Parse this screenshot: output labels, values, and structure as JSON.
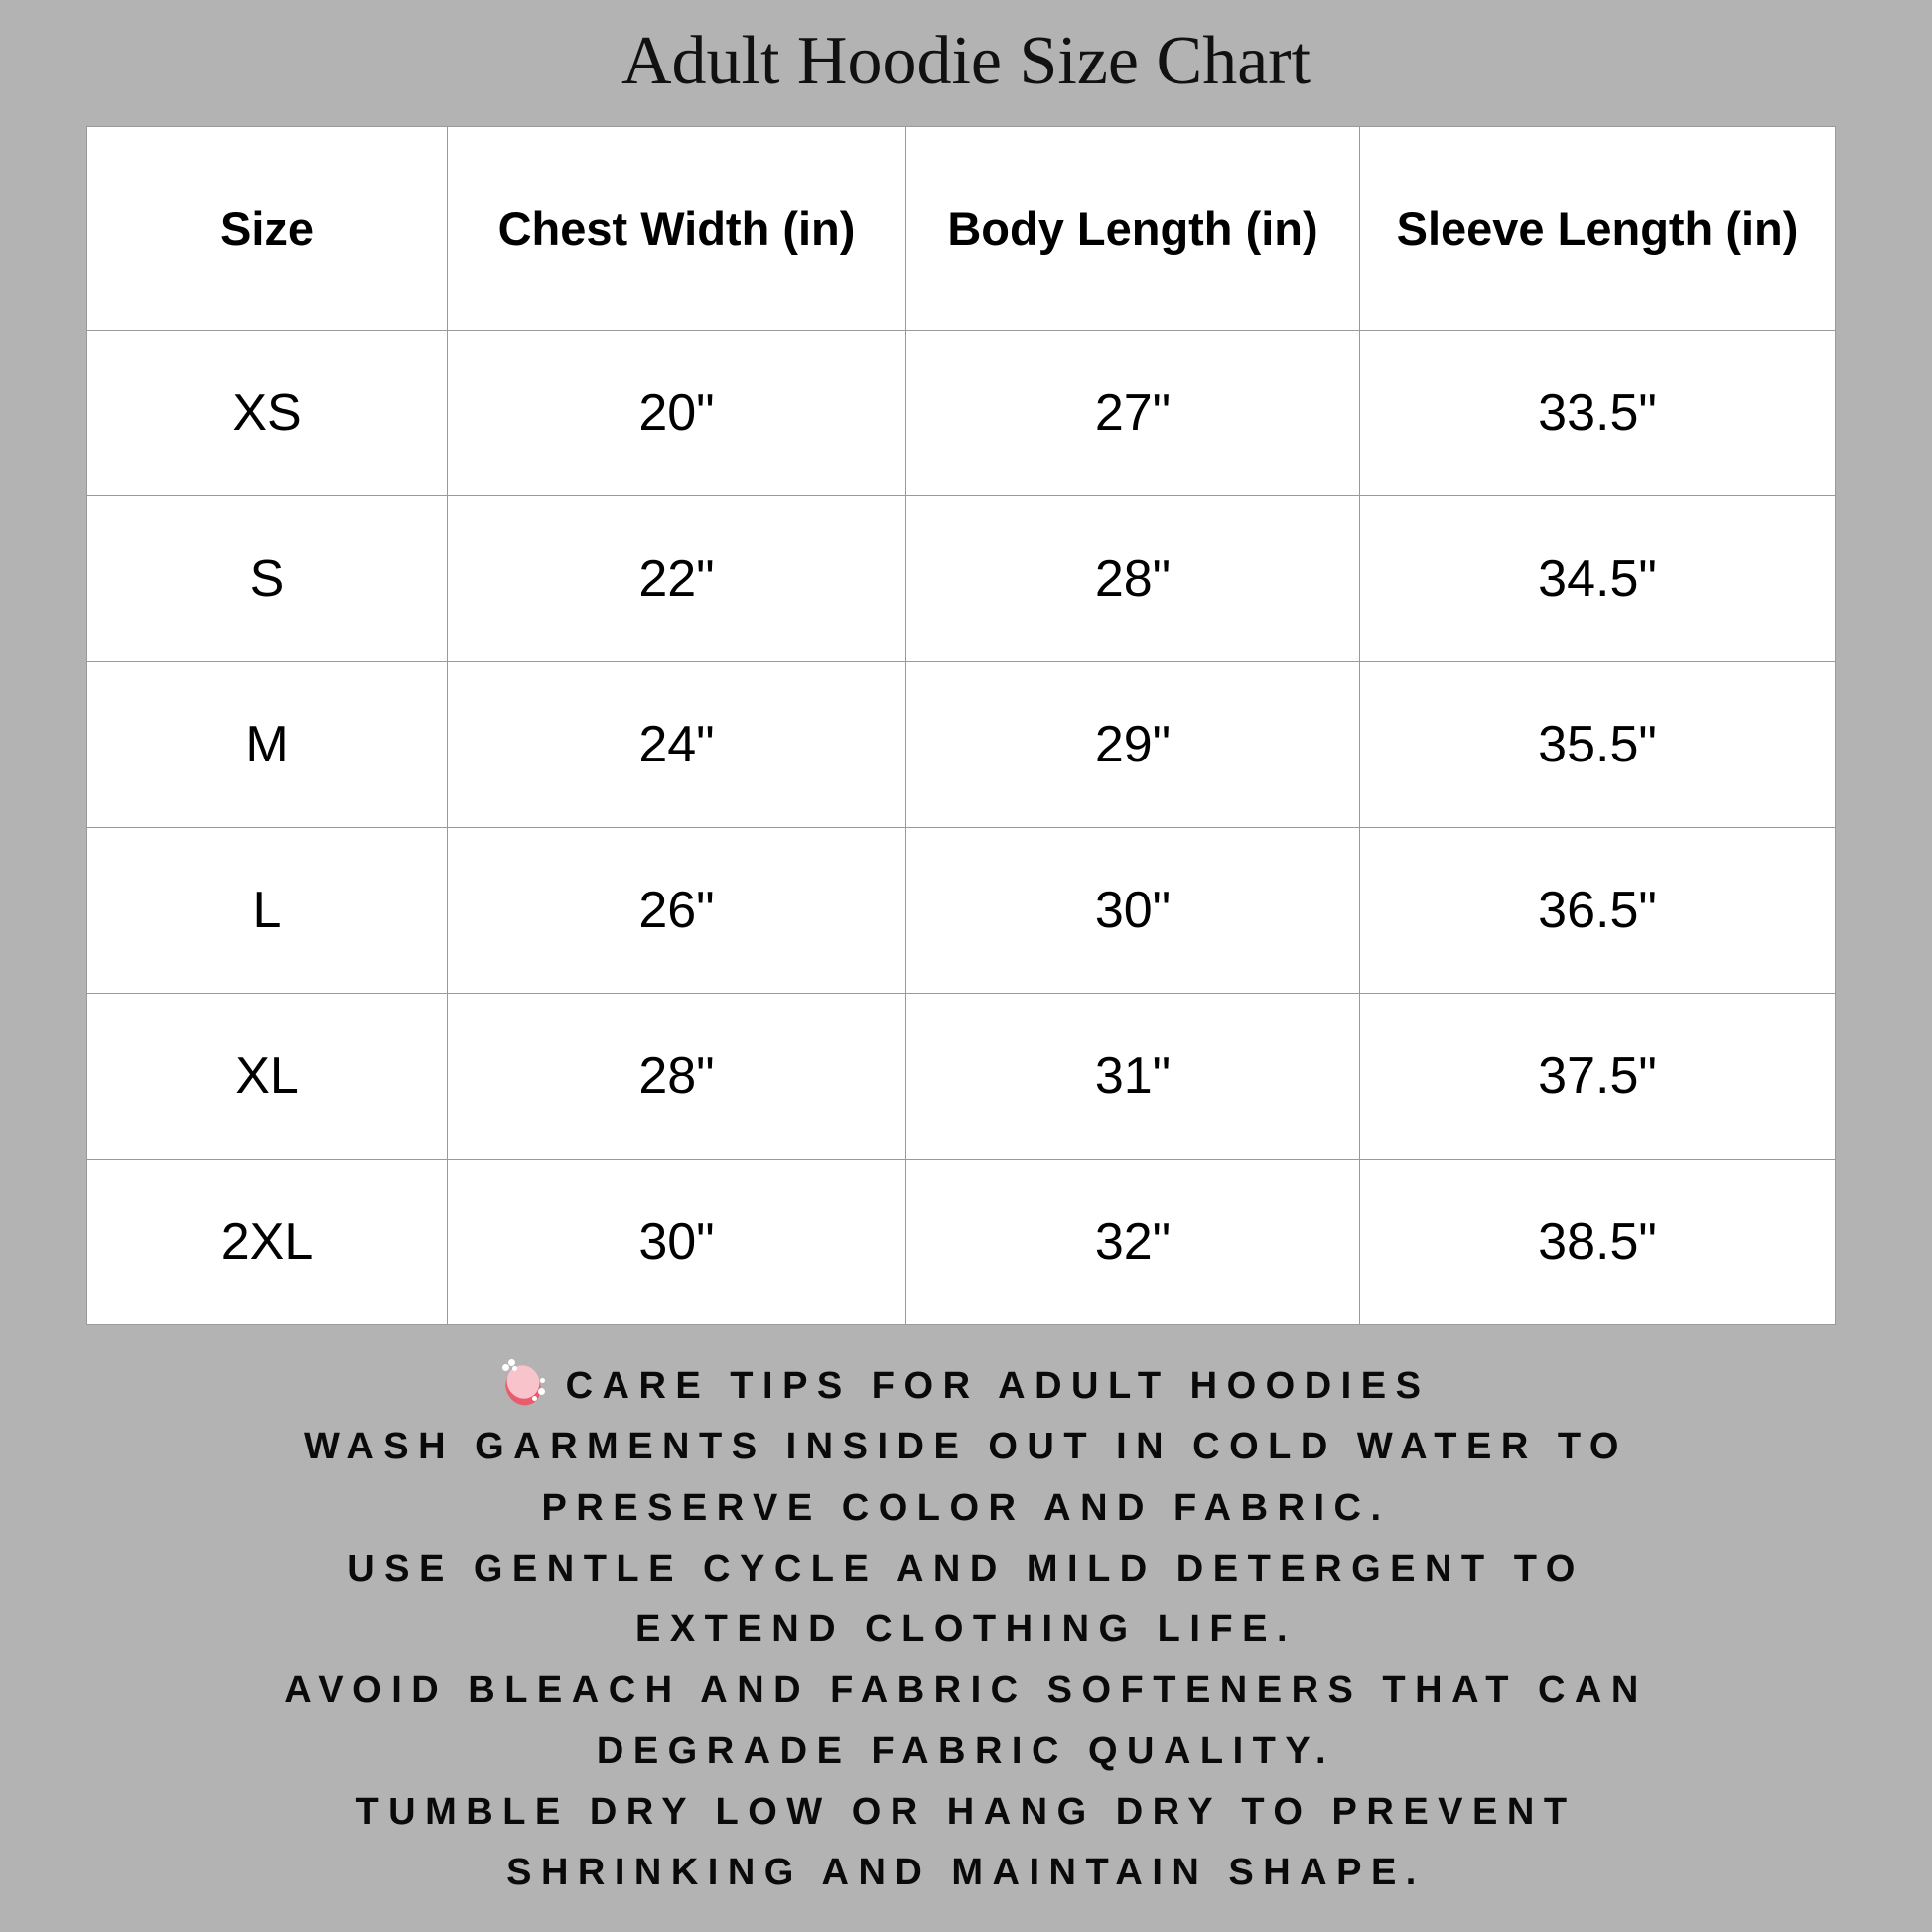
{
  "title": "Adult Hoodie Size Chart",
  "table": {
    "headers": [
      "Size",
      "Chest Width (in)",
      "Body Length (in)",
      "Sleeve Length (in)"
    ],
    "rows": [
      [
        "XS",
        "20\"",
        "27\"",
        "33.5\""
      ],
      [
        "S",
        "22\"",
        "28\"",
        "34.5\""
      ],
      [
        "M",
        "24\"",
        "29\"",
        "35.5\""
      ],
      [
        "L",
        "26\"",
        "30\"",
        "36.5\""
      ],
      [
        "XL",
        "28\"",
        "31\"",
        "37.5\""
      ],
      [
        "2XL",
        "30\"",
        "32\"",
        "38.5\""
      ]
    ]
  },
  "care": {
    "icon": "soap-icon",
    "heading": "CARE TIPS FOR ADULT HOODIES",
    "lines": [
      "WASH GARMENTS INSIDE OUT IN COLD WATER TO",
      "PRESERVE COLOR AND FABRIC.",
      "USE GENTLE CYCLE AND MILD DETERGENT TO",
      "EXTEND CLOTHING LIFE.",
      "AVOID BLEACH AND FABRIC SOFTENERS THAT CAN",
      "DEGRADE FABRIC QUALITY.",
      "TUMBLE DRY LOW OR HANG DRY TO PREVENT",
      "SHRINKING AND MAINTAIN SHAPE."
    ]
  }
}
